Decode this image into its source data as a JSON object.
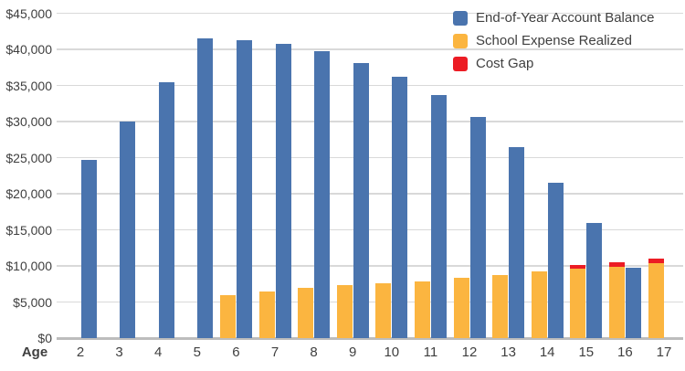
{
  "chart_data": {
    "type": "bar",
    "title": "",
    "xlabel": "Age",
    "ylabel": "",
    "ylim": [
      0,
      45000
    ],
    "ytick_step": 5000,
    "ytick_labels": [
      "$0",
      "$5,000",
      "$10,000",
      "$15,000",
      "$20,000",
      "$25,000",
      "$30,000",
      "$35,000",
      "$40,000",
      "$45,000"
    ],
    "grid": true,
    "legend_position": "top-right",
    "categories": [
      2,
      3,
      4,
      5,
      6,
      7,
      8,
      9,
      10,
      11,
      12,
      13,
      14,
      15,
      16,
      17
    ],
    "series": [
      {
        "name": "End-of-Year Account Balance",
        "color": "#4A74AE",
        "values": [
          24700,
          30000,
          35400,
          41500,
          41300,
          40700,
          39700,
          38100,
          36200,
          33700,
          30600,
          26500,
          21500,
          15900,
          9800,
          0
        ]
      },
      {
        "name": "School Expense Realized",
        "color": "#FBB540",
        "values": [
          0,
          0,
          0,
          0,
          5900,
          6400,
          6900,
          7300,
          7600,
          7800,
          8400,
          8700,
          9300,
          9600,
          9900,
          10400
        ]
      },
      {
        "name": "Cost Gap",
        "color": "#EC1C24",
        "values": [
          0,
          0,
          0,
          0,
          0,
          0,
          0,
          0,
          0,
          0,
          0,
          0,
          0,
          500,
          600,
          600
        ]
      }
    ],
    "colors": {
      "tick_text": "#3F3F3F",
      "gridline": "#D9D9D9",
      "zero_line": "#BDBDBD",
      "background": "#FFFFFF"
    }
  }
}
